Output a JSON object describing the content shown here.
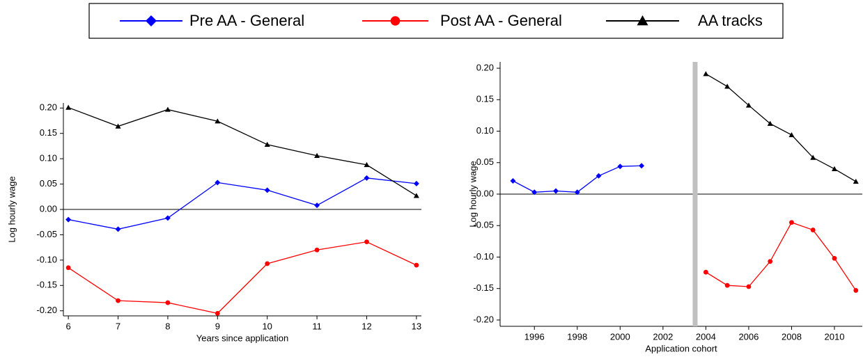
{
  "chart_data": [
    {
      "type": "line",
      "x_label": "Years since application",
      "y_label": "Log hourly wage",
      "x": [
        6,
        7,
        8,
        9,
        10,
        11,
        12,
        13
      ],
      "xlim": [
        5.9,
        13.1
      ],
      "xticks": [
        6,
        7,
        8,
        9,
        10,
        11,
        12,
        13
      ],
      "ylim": [
        -0.21,
        0.21
      ],
      "yticks": [
        {
          "value": -0.2,
          "label": "-0.20"
        },
        {
          "value": -0.15,
          "label": "-0.15"
        },
        {
          "value": -0.1,
          "label": "-0.10"
        },
        {
          "value": -0.05,
          "label": "-0.05"
        },
        {
          "value": 0,
          "label": "0.00"
        },
        {
          "value": 0.05,
          "label": "0.05"
        },
        {
          "value": 0.1,
          "label": "0.10"
        },
        {
          "value": 0.15,
          "label": "0.15"
        },
        {
          "value": 0.2,
          "label": "0.20"
        }
      ],
      "hline": 0,
      "series": [
        {
          "name": "Pre AA - General",
          "color": "#0000ff",
          "marker": "diamond",
          "values": [
            -0.02,
            -0.039,
            -0.017,
            0.053,
            0.038,
            0.008,
            0.062,
            0.051
          ]
        },
        {
          "name": "Post AA - General",
          "color": "#ff0000",
          "marker": "circle",
          "values": [
            -0.115,
            -0.18,
            -0.184,
            -0.205,
            -0.107,
            -0.08,
            -0.064,
            -0.11
          ]
        },
        {
          "name": "AA tracks",
          "color": "#000000",
          "marker": "triangle",
          "values": [
            0.201,
            0.164,
            0.197,
            0.174,
            0.128,
            0.106,
            0.088,
            0.027
          ]
        }
      ]
    },
    {
      "type": "line",
      "x_label": "Application cohort",
      "y_label": "Log hourly wage",
      "x": [
        1995,
        1996,
        1997,
        1998,
        1999,
        2000,
        2001,
        2002,
        2003,
        2004,
        2005,
        2006,
        2007,
        2008,
        2009,
        2010,
        2011
      ],
      "xlim": [
        1994.4,
        2011.3
      ],
      "xticks": [
        1996,
        1998,
        2000,
        2002,
        2004,
        2006,
        2008,
        2010
      ],
      "ylim": [
        -0.21,
        0.21
      ],
      "yticks": [
        {
          "value": -0.2,
          "label": "-0.20"
        },
        {
          "value": -0.15,
          "label": "-0.15"
        },
        {
          "value": -0.1,
          "label": "-0.10"
        },
        {
          "value": -0.05,
          "label": "-0.05"
        },
        {
          "value": 0,
          "label": "0.00"
        },
        {
          "value": 0.05,
          "label": "0.05"
        },
        {
          "value": 0.1,
          "label": "0.10"
        },
        {
          "value": 0.15,
          "label": "0.15"
        },
        {
          "value": 0.2,
          "label": "0.20"
        }
      ],
      "hline": 0,
      "vline": 2003.5,
      "vline_color": "#c0c0c0",
      "series": [
        {
          "name": "Pre AA - General",
          "color": "#0000ff",
          "marker": "diamond",
          "values": [
            0.021,
            0.003,
            0.005,
            0.003,
            0.029,
            0.044,
            0.045,
            null,
            null,
            null,
            null,
            null,
            null,
            null,
            null,
            null,
            null
          ]
        },
        {
          "name": "Post AA - General",
          "color": "#ff0000",
          "marker": "circle",
          "values": [
            null,
            null,
            null,
            null,
            null,
            null,
            null,
            null,
            null,
            -0.124,
            -0.145,
            -0.147,
            -0.107,
            -0.045,
            -0.057,
            -0.102,
            -0.153
          ]
        },
        {
          "name": "AA tracks",
          "color": "#000000",
          "marker": "triangle",
          "values": [
            null,
            null,
            null,
            null,
            null,
            null,
            null,
            null,
            null,
            0.191,
            0.171,
            0.141,
            0.112,
            0.094,
            0.058,
            0.04,
            0.02
          ]
        }
      ]
    }
  ]
}
